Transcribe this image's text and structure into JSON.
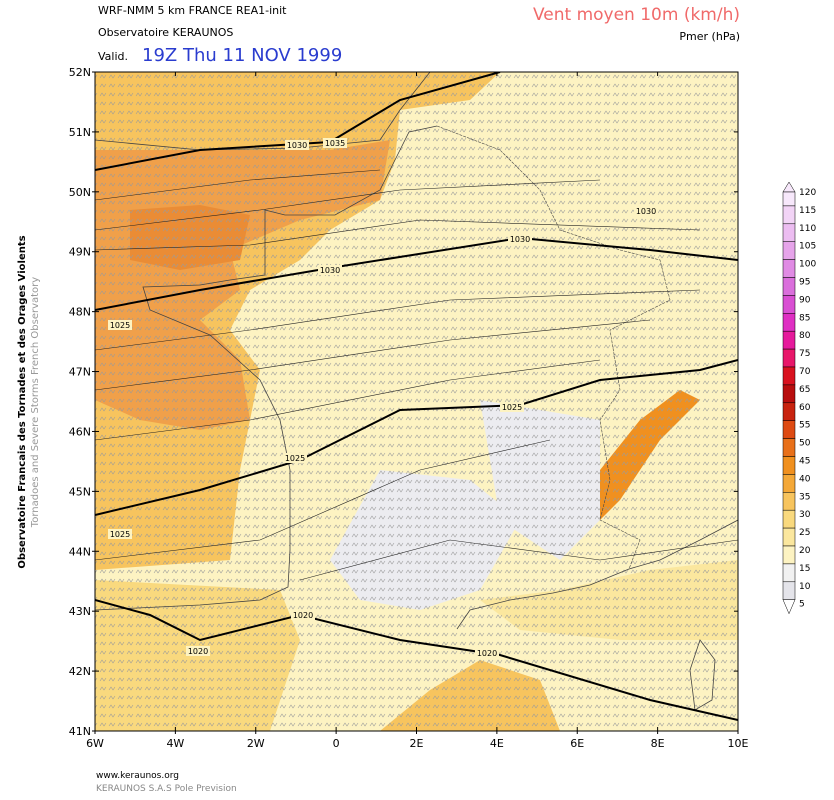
{
  "header": {
    "model": "WRF-NMM 5 km FRANCE  REA1-init",
    "org": "Observatoire KERAUNOS",
    "valid_label": "Valid.",
    "valid_time": "19Z Thu 11 NOV 1999",
    "field": "Vent moyen 10m (km/h)",
    "contour_field": "Pmer (hPa)"
  },
  "side": {
    "line1": "Observatoire Francais des Tornades et des Orages Violents",
    "line2": "Tornadoes and Severe Storms French Observatory"
  },
  "axes": {
    "lat_ticks": [
      {
        "value": 52,
        "label": "52N"
      },
      {
        "value": 51,
        "label": "51N"
      },
      {
        "value": 50,
        "label": "50N"
      },
      {
        "value": 49,
        "label": "49N"
      },
      {
        "value": 48,
        "label": "48N"
      },
      {
        "value": 47,
        "label": "47N"
      },
      {
        "value": 46,
        "label": "46N"
      },
      {
        "value": 45,
        "label": "45N"
      },
      {
        "value": 44,
        "label": "44N"
      },
      {
        "value": 43,
        "label": "43N"
      },
      {
        "value": 42,
        "label": "42N"
      },
      {
        "value": 41,
        "label": "41N"
      }
    ],
    "lon_ticks": [
      {
        "value": -6,
        "label": "6W"
      },
      {
        "value": -4,
        "label": "4W"
      },
      {
        "value": -2,
        "label": "2W"
      },
      0,
      {
        "value": 2,
        "label": "2E"
      },
      {
        "value": 4,
        "label": "4E"
      },
      {
        "value": 6,
        "label": "6E"
      },
      {
        "value": 8,
        "label": "8E"
      },
      {
        "value": 10,
        "label": "10E"
      }
    ],
    "lat_range": [
      41,
      52
    ],
    "lon_range": [
      -6,
      10
    ]
  },
  "colorbar": {
    "ticks": [
      120,
      115,
      110,
      105,
      100,
      95,
      90,
      85,
      80,
      75,
      70,
      65,
      60,
      55,
      50,
      45,
      40,
      35,
      30,
      25,
      20,
      15,
      10,
      5
    ],
    "colors": [
      "#f7e8fb",
      "#f2d4f6",
      "#ecbdf1",
      "#e6a4ea",
      "#e08be4",
      "#da6fdc",
      "#d94fd3",
      "#df2fc3",
      "#e61a9c",
      "#e8176a",
      "#d9121f",
      "#b80e0e",
      "#c8230f",
      "#de4a12",
      "#e8701a",
      "#f0901f",
      "#f4a838",
      "#f7c45e",
      "#f9d97e",
      "#fbe79e",
      "#fdf3c2",
      "#f1f1f1",
      "#e4e4ea",
      "#ffffff"
    ]
  },
  "isobars": {
    "labels": [
      "1035",
      "1030",
      "1030",
      "1030",
      "1030",
      "1025",
      "1025",
      "1025",
      "1025",
      "1020",
      "1020",
      "1020"
    ]
  },
  "footer": {
    "url": "www.keraunos.org",
    "company": "KERAUNOS S.A.S Pole Prevision"
  }
}
